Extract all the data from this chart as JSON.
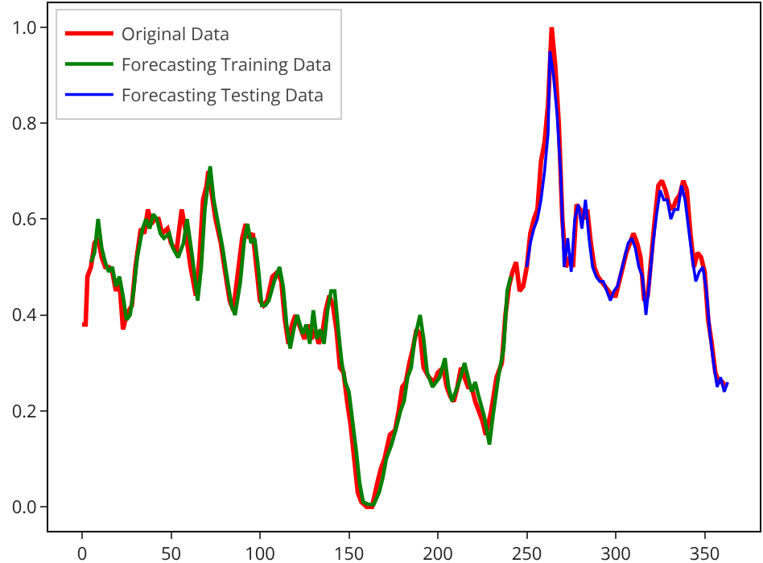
{
  "chart_data": {
    "type": "line",
    "xlim": [
      -19,
      381
    ],
    "ylim": [
      -0.05,
      1.05
    ],
    "xticks": [
      0,
      50,
      100,
      150,
      200,
      250,
      300,
      350
    ],
    "yticks": [
      {
        "value": 0,
        "label": "0.0"
      },
      {
        "value": 0.2,
        "label": "0.2"
      },
      {
        "value": 0.4,
        "label": "0.4"
      },
      {
        "value": 0.6,
        "label": "0.6"
      },
      {
        "value": 0.8,
        "label": "0.8"
      },
      {
        "value": 1,
        "label": "1.0"
      }
    ],
    "grid": false,
    "legend": "top left",
    "series": [
      {
        "name": "Original Data",
        "color": "#ff0000",
        "x": [
          0,
          2,
          3,
          5,
          7,
          9,
          11,
          13,
          15,
          17,
          19,
          21,
          23,
          25,
          28,
          30,
          33,
          35,
          37,
          39,
          41,
          43,
          45,
          48,
          50,
          53,
          56,
          58,
          61,
          64,
          66,
          68,
          70,
          71,
          73,
          75,
          78,
          80,
          83,
          85,
          88,
          90,
          92,
          94,
          96,
          98,
          100,
          102,
          104,
          107,
          110,
          112,
          114,
          116,
          118,
          120,
          123,
          125,
          127,
          129,
          131,
          133,
          135,
          137,
          139,
          141,
          143,
          145,
          147,
          149,
          151,
          153,
          155,
          157,
          160,
          163,
          166,
          168,
          170,
          173,
          176,
          178,
          180,
          182,
          184,
          186,
          188,
          190,
          192,
          195,
          198,
          200,
          203,
          205,
          207,
          209,
          211,
          213,
          215,
          217,
          219,
          221,
          223,
          225,
          227,
          230,
          233,
          236,
          238,
          240,
          242,
          244,
          246,
          248,
          250,
          252,
          254,
          256,
          258,
          260,
          262,
          264,
          266,
          268,
          270,
          272,
          274,
          276,
          278,
          280,
          282,
          284,
          286,
          288,
          290,
          292,
          294,
          296,
          298,
          300,
          302,
          304,
          306,
          308,
          310,
          312,
          314,
          316,
          318,
          320,
          322,
          324,
          326,
          328,
          330,
          332,
          334,
          336,
          338,
          340,
          342,
          344,
          346,
          348,
          350,
          352,
          354,
          356,
          358,
          360,
          362
        ],
        "values": [
          0.38,
          0.38,
          0.48,
          0.5,
          0.55,
          0.56,
          0.52,
          0.5,
          0.5,
          0.49,
          0.45,
          0.47,
          0.37,
          0.4,
          0.42,
          0.5,
          0.58,
          0.57,
          0.62,
          0.59,
          0.6,
          0.6,
          0.57,
          0.58,
          0.55,
          0.53,
          0.62,
          0.58,
          0.5,
          0.44,
          0.52,
          0.64,
          0.67,
          0.7,
          0.65,
          0.6,
          0.55,
          0.5,
          0.43,
          0.41,
          0.5,
          0.56,
          0.59,
          0.56,
          0.57,
          0.5,
          0.43,
          0.42,
          0.43,
          0.48,
          0.49,
          0.47,
          0.39,
          0.34,
          0.38,
          0.4,
          0.37,
          0.35,
          0.38,
          0.35,
          0.37,
          0.34,
          0.36,
          0.41,
          0.44,
          0.42,
          0.37,
          0.29,
          0.28,
          0.22,
          0.17,
          0.1,
          0.03,
          0.01,
          0,
          0,
          0.05,
          0.08,
          0.1,
          0.15,
          0.16,
          0.2,
          0.25,
          0.26,
          0.3,
          0.33,
          0.37,
          0.36,
          0.29,
          0.27,
          0.26,
          0.28,
          0.29,
          0.25,
          0.23,
          0.22,
          0.25,
          0.29,
          0.27,
          0.25,
          0.25,
          0.22,
          0.2,
          0.18,
          0.15,
          0.2,
          0.27,
          0.3,
          0.4,
          0.46,
          0.49,
          0.51,
          0.45,
          0.46,
          0.5,
          0.57,
          0.6,
          0.62,
          0.72,
          0.76,
          0.84,
          1.0,
          0.92,
          0.8,
          0.6,
          0.5,
          0.52,
          0.5,
          0.63,
          0.62,
          0.6,
          0.62,
          0.55,
          0.5,
          0.48,
          0.47,
          0.46,
          0.45,
          0.44,
          0.44,
          0.47,
          0.5,
          0.53,
          0.55,
          0.57,
          0.55,
          0.52,
          0.43,
          0.44,
          0.52,
          0.6,
          0.67,
          0.68,
          0.66,
          0.63,
          0.62,
          0.64,
          0.65,
          0.68,
          0.66,
          0.57,
          0.5,
          0.53,
          0.52,
          0.49,
          0.39,
          0.34,
          0.28,
          0.26,
          0.26,
          0.25
        ]
      },
      {
        "name": "Forecasting Training Data",
        "color": "#008000",
        "x": [
          5,
          7,
          9,
          11,
          13,
          15,
          17,
          19,
          21,
          23,
          25,
          27,
          29,
          31,
          34,
          36,
          38,
          40,
          42,
          44,
          46,
          49,
          51,
          54,
          57,
          59,
          62,
          65,
          67,
          69,
          72,
          74,
          76,
          79,
          81,
          84,
          86,
          89,
          91,
          93,
          95,
          97,
          99,
          101,
          103,
          105,
          108,
          111,
          113,
          115,
          117,
          119,
          121,
          124,
          126,
          128,
          130,
          132,
          134,
          136,
          138,
          140,
          142,
          144,
          146,
          148,
          150,
          152,
          154,
          156,
          158,
          161,
          164,
          167,
          169,
          171,
          174,
          177,
          179,
          181,
          183,
          185,
          187,
          190,
          192,
          194,
          197,
          199,
          201,
          204,
          206,
          208,
          210,
          212,
          215,
          217,
          219,
          221,
          223,
          226,
          229,
          231,
          234,
          237,
          239,
          241
        ],
        "values": [
          0.51,
          0.53,
          0.6,
          0.54,
          0.51,
          0.49,
          0.5,
          0.46,
          0.48,
          0.44,
          0.39,
          0.4,
          0.45,
          0.52,
          0.58,
          0.6,
          0.58,
          0.61,
          0.6,
          0.57,
          0.56,
          0.57,
          0.54,
          0.52,
          0.55,
          0.6,
          0.52,
          0.43,
          0.5,
          0.62,
          0.71,
          0.64,
          0.6,
          0.54,
          0.49,
          0.42,
          0.4,
          0.47,
          0.55,
          0.59,
          0.55,
          0.56,
          0.5,
          0.42,
          0.42,
          0.43,
          0.47,
          0.5,
          0.46,
          0.38,
          0.33,
          0.37,
          0.4,
          0.36,
          0.38,
          0.34,
          0.41,
          0.35,
          0.37,
          0.34,
          0.41,
          0.45,
          0.45,
          0.37,
          0.3,
          0.26,
          0.24,
          0.18,
          0.12,
          0.05,
          0.01,
          0.005,
          0.005,
          0.03,
          0.06,
          0.1,
          0.13,
          0.17,
          0.2,
          0.22,
          0.27,
          0.29,
          0.35,
          0.4,
          0.35,
          0.28,
          0.25,
          0.26,
          0.27,
          0.31,
          0.25,
          0.22,
          0.24,
          0.26,
          0.3,
          0.27,
          0.24,
          0.26,
          0.23,
          0.19,
          0.13,
          0.19,
          0.27,
          0.33,
          0.45,
          0.48
        ]
      },
      {
        "name": "Forecasting Testing Data",
        "color": "#0000ff",
        "x": [
          250,
          252,
          254,
          256,
          258,
          260,
          262,
          263,
          265,
          267,
          269,
          271,
          273,
          275,
          277,
          279,
          281,
          283,
          285,
          287,
          289,
          291,
          293,
          295,
          297,
          299,
          301,
          303,
          305,
          307,
          309,
          311,
          313,
          315,
          317,
          319,
          321,
          323,
          325,
          327,
          329,
          331,
          333,
          335,
          337,
          339,
          341,
          343,
          345,
          347,
          349,
          351,
          353,
          355,
          357,
          359,
          361,
          363
        ],
        "values": [
          0.5,
          0.55,
          0.58,
          0.6,
          0.64,
          0.7,
          0.78,
          0.95,
          0.9,
          0.82,
          0.7,
          0.5,
          0.56,
          0.49,
          0.6,
          0.63,
          0.58,
          0.64,
          0.56,
          0.5,
          0.48,
          0.47,
          0.47,
          0.45,
          0.43,
          0.45,
          0.46,
          0.49,
          0.52,
          0.55,
          0.56,
          0.54,
          0.5,
          0.48,
          0.4,
          0.47,
          0.55,
          0.61,
          0.66,
          0.64,
          0.64,
          0.6,
          0.62,
          0.62,
          0.67,
          0.64,
          0.58,
          0.52,
          0.47,
          0.49,
          0.5,
          0.45,
          0.36,
          0.3,
          0.25,
          0.27,
          0.24,
          0.26
        ]
      }
    ]
  }
}
